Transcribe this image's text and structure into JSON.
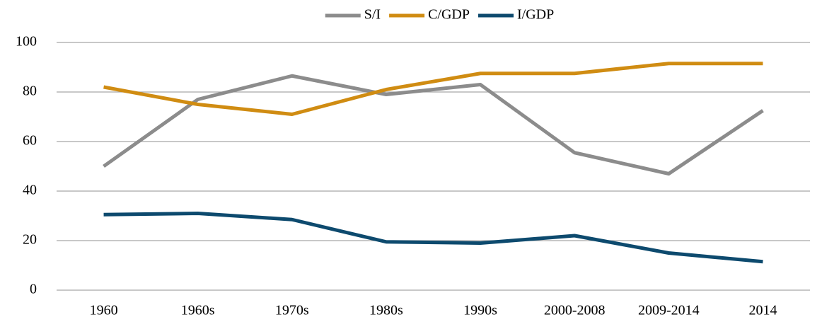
{
  "chart_data": {
    "type": "line",
    "categories": [
      "1960",
      "1960s",
      "1970s",
      "1980s",
      "1990s",
      "2000-2008",
      "2009-2014",
      "2014"
    ],
    "series": [
      {
        "name": "S/I",
        "color": "#8c8c8c",
        "values": [
          50,
          77,
          86.5,
          79,
          83,
          55.5,
          47,
          72.5
        ]
      },
      {
        "name": "C/GDP",
        "color": "#d08c12",
        "values": [
          82,
          75,
          71,
          81,
          87.5,
          87.5,
          91.5,
          91.5
        ]
      },
      {
        "name": "I/GDP",
        "color": "#0d4a6e",
        "values": [
          30.5,
          31,
          28.5,
          19.5,
          19,
          22,
          15,
          11.5
        ]
      }
    ],
    "ylim": [
      0,
      100
    ],
    "yticks": [
      0,
      20,
      40,
      60,
      80,
      100
    ],
    "grid": true,
    "legend": "top"
  }
}
